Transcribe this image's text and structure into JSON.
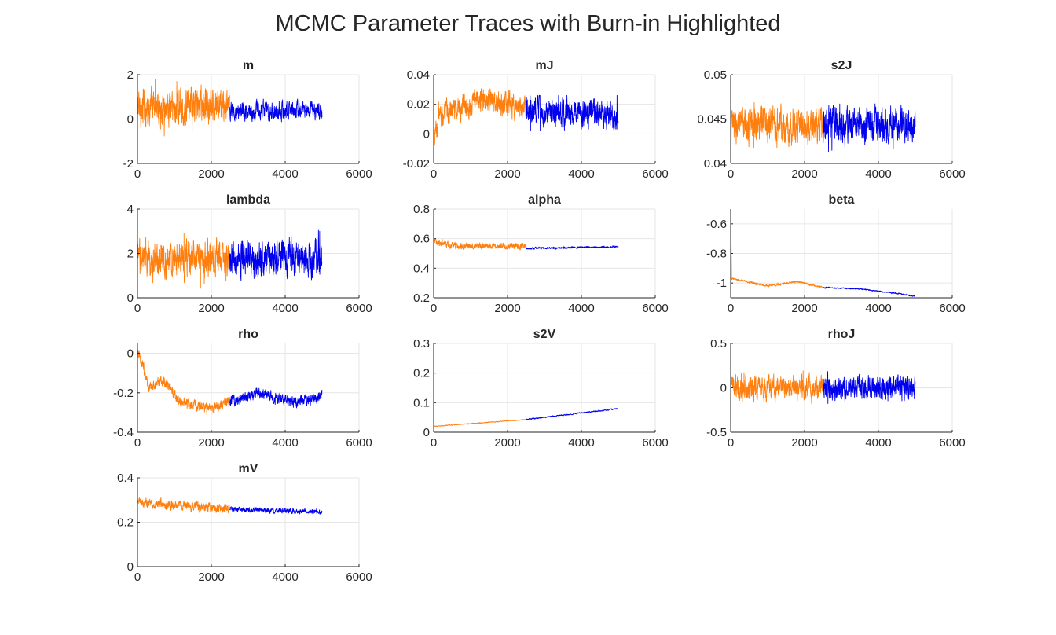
{
  "figure": {
    "title": "MCMC Parameter Traces with Burn-in Highlighted"
  },
  "colors": {
    "burn_in": "#ff7f0e",
    "post_burn_in": "#0000ee",
    "grid": "#e6e6e6",
    "axis": "#262626"
  },
  "chart_data": [
    {
      "type": "line",
      "title": "m",
      "xlabel": "",
      "ylabel": "",
      "xlim": [
        0,
        6000
      ],
      "ylim": [
        -2,
        2
      ],
      "xticks": [
        0,
        2000,
        4000,
        6000
      ],
      "yticks": [
        -2,
        0,
        2
      ],
      "grid": true,
      "burn_in_end": 2500,
      "n_samples": 5000,
      "series": [
        {
          "role": "burn-in",
          "x": [
            1,
            2500
          ],
          "trend": [
            [
              0,
              0.5
            ],
            [
              2500,
              0.55
            ]
          ],
          "noise": 0.6,
          "range": [
            -1.7,
            1.95
          ]
        },
        {
          "role": "post-burn-in",
          "x": [
            2501,
            5000
          ],
          "trend": [
            [
              2500,
              0.35
            ],
            [
              5000,
              0.4
            ]
          ],
          "noise": 0.3,
          "range": [
            -0.5,
            1.2
          ]
        }
      ]
    },
    {
      "type": "line",
      "title": "mJ",
      "xlabel": "",
      "ylabel": "",
      "xlim": [
        0,
        6000
      ],
      "ylim": [
        -0.02,
        0.04
      ],
      "xticks": [
        0,
        2000,
        4000,
        6000
      ],
      "yticks": [
        -0.02,
        0,
        0.02,
        0.04
      ],
      "grid": true,
      "burn_in_end": 2500,
      "n_samples": 5000,
      "series": [
        {
          "role": "burn-in",
          "x": [
            1,
            2500
          ],
          "trend": [
            [
              0,
              -0.008
            ],
            [
              150,
              0.012
            ],
            [
              1200,
              0.023
            ],
            [
              2500,
              0.018
            ]
          ],
          "noise": 0.006,
          "range": [
            -0.01,
            0.033
          ]
        },
        {
          "role": "post-burn-in",
          "x": [
            2501,
            5000
          ],
          "trend": [
            [
              2500,
              0.015
            ],
            [
              5000,
              0.012
            ]
          ],
          "noise": 0.007,
          "range": [
            0.002,
            0.026
          ]
        }
      ]
    },
    {
      "type": "line",
      "title": "s2J",
      "xlabel": "",
      "ylabel": "",
      "xlim": [
        0,
        6000
      ],
      "ylim": [
        0.04,
        0.05
      ],
      "xticks": [
        0,
        2000,
        4000,
        6000
      ],
      "yticks": [
        0.04,
        0.045,
        0.05
      ],
      "grid": true,
      "burn_in_end": 2500,
      "n_samples": 5000,
      "series": [
        {
          "role": "burn-in",
          "x": [
            1,
            2500
          ],
          "trend": [
            [
              0,
              0.0443
            ],
            [
              2500,
              0.0443
            ]
          ],
          "noise": 0.0015,
          "range": [
            0.0402,
            0.0492
          ]
        },
        {
          "role": "post-burn-in",
          "x": [
            2501,
            5000
          ],
          "trend": [
            [
              2500,
              0.0443
            ],
            [
              5000,
              0.0443
            ]
          ],
          "noise": 0.0015,
          "range": [
            0.0405,
            0.0487
          ]
        }
      ]
    },
    {
      "type": "line",
      "title": "lambda",
      "xlabel": "",
      "ylabel": "",
      "xlim": [
        0,
        6000
      ],
      "ylim": [
        0,
        4
      ],
      "xticks": [
        0,
        2000,
        4000,
        6000
      ],
      "yticks": [
        0,
        2,
        4
      ],
      "grid": true,
      "burn_in_end": 2500,
      "n_samples": 5000,
      "series": [
        {
          "role": "burn-in",
          "x": [
            1,
            2500
          ],
          "trend": [
            [
              0,
              1.7
            ],
            [
              2500,
              1.75
            ]
          ],
          "noise": 0.6,
          "range": [
            0.4,
            3.6
          ]
        },
        {
          "role": "post-burn-in",
          "x": [
            2501,
            5000
          ],
          "trend": [
            [
              2500,
              1.8
            ],
            [
              5000,
              1.8
            ]
          ],
          "noise": 0.6,
          "range": [
            0.5,
            3.9
          ]
        }
      ]
    },
    {
      "type": "line",
      "title": "alpha",
      "xlabel": "",
      "ylabel": "",
      "xlim": [
        0,
        6000
      ],
      "ylim": [
        0.2,
        0.8
      ],
      "xticks": [
        0,
        2000,
        4000,
        6000
      ],
      "yticks": [
        0.2,
        0.4,
        0.6,
        0.8
      ],
      "grid": true,
      "burn_in_end": 2500,
      "n_samples": 5000,
      "series": [
        {
          "role": "burn-in",
          "x": [
            1,
            2500
          ],
          "trend": [
            [
              0,
              0.58
            ],
            [
              500,
              0.55
            ],
            [
              2500,
              0.55
            ]
          ],
          "noise": 0.015,
          "range": [
            0.48,
            0.72
          ]
        },
        {
          "role": "post-burn-in",
          "x": [
            2501,
            5000
          ],
          "trend": [
            [
              2500,
              0.535
            ],
            [
              5000,
              0.545
            ]
          ],
          "noise": 0.005,
          "range": [
            0.52,
            0.56
          ]
        }
      ]
    },
    {
      "type": "line",
      "title": "beta",
      "xlabel": "",
      "ylabel": "",
      "xlim": [
        0,
        6000
      ],
      "ylim": [
        -1.1,
        -0.5
      ],
      "xticks": [
        0,
        2000,
        4000,
        6000
      ],
      "yticks": [
        -1,
        -0.8,
        -0.6
      ],
      "grid": true,
      "burn_in_end": 2500,
      "n_samples": 5000,
      "series": [
        {
          "role": "burn-in",
          "x": [
            1,
            2500
          ],
          "trend": [
            [
              0,
              -0.5
            ],
            [
              25,
              -0.97
            ],
            [
              1000,
              -1.02
            ],
            [
              1800,
              -0.99
            ],
            [
              2500,
              -1.03
            ]
          ],
          "noise": 0.005,
          "range": [
            -1.05,
            -0.5
          ]
        },
        {
          "role": "post-burn-in",
          "x": [
            2501,
            5000
          ],
          "trend": [
            [
              2500,
              -1.03
            ],
            [
              3500,
              -1.04
            ],
            [
              4500,
              -1.07
            ],
            [
              5000,
              -1.09
            ]
          ],
          "noise": 0.003,
          "range": [
            -1.1,
            -1.02
          ]
        }
      ]
    },
    {
      "type": "line",
      "title": "rho",
      "xlabel": "",
      "ylabel": "",
      "xlim": [
        0,
        6000
      ],
      "ylim": [
        -0.4,
        0.05
      ],
      "xticks": [
        0,
        2000,
        4000,
        6000
      ],
      "yticks": [
        -0.4,
        -0.2,
        0
      ],
      "grid": true,
      "burn_in_end": 2500,
      "n_samples": 5000,
      "series": [
        {
          "role": "burn-in",
          "x": [
            1,
            2500
          ],
          "trend": [
            [
              0,
              0.02
            ],
            [
              300,
              -0.17
            ],
            [
              700,
              -0.14
            ],
            [
              1200,
              -0.25
            ],
            [
              2000,
              -0.28
            ],
            [
              2500,
              -0.24
            ]
          ],
          "noise": 0.02,
          "range": [
            -0.32,
            0.04
          ]
        },
        {
          "role": "post-burn-in",
          "x": [
            2501,
            5000
          ],
          "trend": [
            [
              2500,
              -0.24
            ],
            [
              3300,
              -0.2
            ],
            [
              4200,
              -0.25
            ],
            [
              5000,
              -0.22
            ]
          ],
          "noise": 0.02,
          "range": [
            -0.32,
            -0.17
          ]
        }
      ]
    },
    {
      "type": "line",
      "title": "s2V",
      "xlabel": "",
      "ylabel": "",
      "xlim": [
        0,
        6000
      ],
      "ylim": [
        0,
        0.3
      ],
      "xticks": [
        0,
        2000,
        4000,
        6000
      ],
      "yticks": [
        0,
        0.1,
        0.2,
        0.3
      ],
      "grid": true,
      "burn_in_end": 2500,
      "n_samples": 5000,
      "series": [
        {
          "role": "burn-in",
          "x": [
            1,
            2500
          ],
          "trend": [
            [
              0,
              0.02
            ],
            [
              2500,
              0.043
            ]
          ],
          "noise": 0.001,
          "range": [
            0.015,
            0.28
          ]
        },
        {
          "role": "post-burn-in",
          "x": [
            2501,
            5000
          ],
          "trend": [
            [
              2500,
              0.043
            ],
            [
              5000,
              0.08
            ]
          ],
          "noise": 0.0015,
          "range": [
            0.04,
            0.085
          ]
        }
      ]
    },
    {
      "type": "line",
      "title": "rhoJ",
      "xlabel": "",
      "ylabel": "",
      "xlim": [
        0,
        6000
      ],
      "ylim": [
        -0.5,
        0.5
      ],
      "xticks": [
        0,
        2000,
        4000,
        6000
      ],
      "yticks": [
        -0.5,
        0,
        0.5
      ],
      "grid": true,
      "burn_in_end": 2500,
      "n_samples": 5000,
      "series": [
        {
          "role": "burn-in",
          "x": [
            1,
            2500
          ],
          "trend": [
            [
              0,
              0
            ],
            [
              2500,
              0
            ]
          ],
          "noise": 0.1,
          "range": [
            -0.38,
            0.3
          ]
        },
        {
          "role": "post-burn-in",
          "x": [
            2501,
            5000
          ],
          "trend": [
            [
              2500,
              0
            ],
            [
              5000,
              0
            ]
          ],
          "noise": 0.1,
          "range": [
            -0.3,
            0.37
          ]
        }
      ]
    },
    {
      "type": "line",
      "title": "mV",
      "xlabel": "",
      "ylabel": "",
      "xlim": [
        0,
        6000
      ],
      "ylim": [
        0,
        0.4
      ],
      "xticks": [
        0,
        2000,
        4000,
        6000
      ],
      "yticks": [
        0,
        0.2,
        0.4
      ],
      "grid": true,
      "burn_in_end": 2500,
      "n_samples": 5000,
      "series": [
        {
          "role": "burn-in",
          "x": [
            1,
            2500
          ],
          "trend": [
            [
              0,
              0.29
            ],
            [
              2500,
              0.26
            ]
          ],
          "noise": 0.015,
          "range": [
            0.19,
            0.36
          ]
        },
        {
          "role": "post-burn-in",
          "x": [
            2501,
            5000
          ],
          "trend": [
            [
              2500,
              0.26
            ],
            [
              5000,
              0.245
            ]
          ],
          "noise": 0.008,
          "range": [
            0.22,
            0.28
          ]
        }
      ]
    }
  ]
}
